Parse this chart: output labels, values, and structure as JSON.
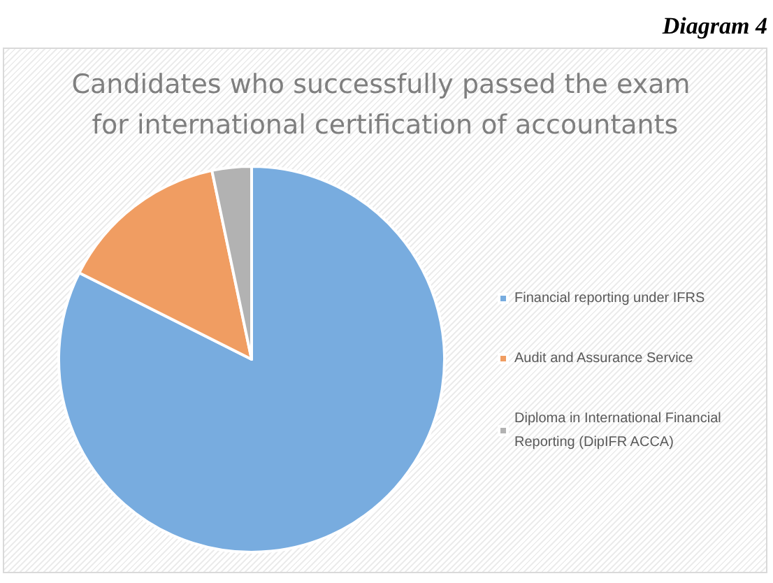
{
  "chart_data": {
    "type": "pie",
    "title": "Candidates who successfully passed the exam for international certification of accountants",
    "annotations": [
      "Diagram 4"
    ],
    "categories": [
      "Financial reporting under IFRS",
      "Audit and Assurance Service",
      "Diploma in International Financial Reporting (DipIFR ACCA)"
    ],
    "values": [
      82.4,
      14.3,
      3.3
    ],
    "colors": [
      "#78acdf",
      "#f09d62",
      "#b2b2b2"
    ],
    "legend": "right"
  }
}
